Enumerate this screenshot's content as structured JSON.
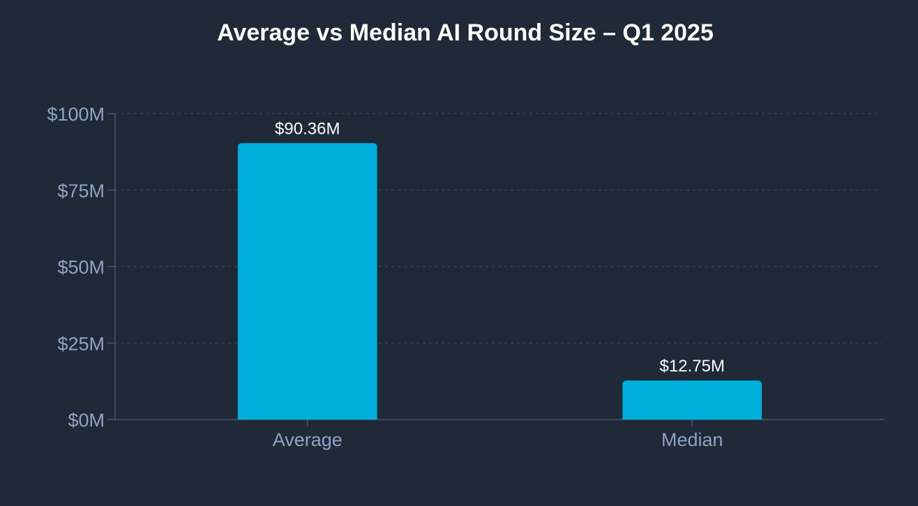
{
  "chart_data": {
    "type": "bar",
    "title": "Average vs Median AI Round Size – Q1 2025",
    "categories": [
      "Average",
      "Median"
    ],
    "values": [
      90.36,
      12.75
    ],
    "value_labels": [
      "$90.36M",
      "$12.75M"
    ],
    "xlabel": "",
    "ylabel": "",
    "ylim": [
      0,
      100
    ],
    "y_ticks": [
      0,
      25,
      50,
      75,
      100
    ],
    "y_tick_labels": [
      "$0M",
      "$25M",
      "$50M",
      "$75M",
      "$100M"
    ],
    "grid": true,
    "legend": "none",
    "colors": {
      "background": "#202938",
      "bar": "#00b0dc",
      "grid": "#3e4a5e",
      "axis": "#4b5669",
      "tick_text": "#8fa3c4",
      "title_text": "#ffffff",
      "value_text": "#ffffff"
    }
  }
}
